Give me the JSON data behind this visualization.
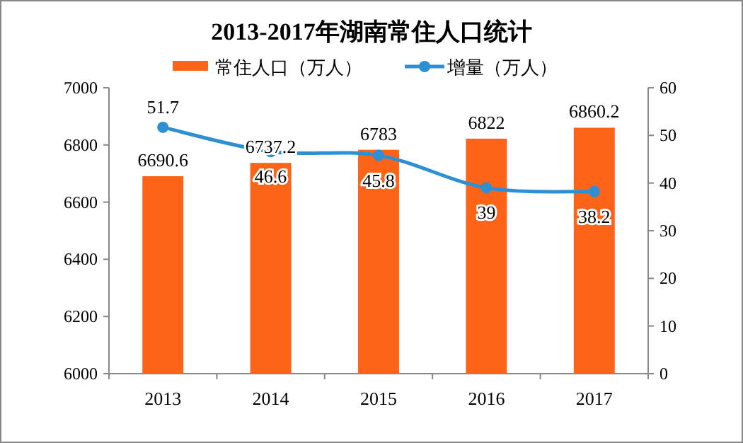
{
  "chart_data": {
    "type": "bar",
    "title": "2013-2017年湖南常住人口统计",
    "categories": [
      "2013",
      "2014",
      "2015",
      "2016",
      "2017"
    ],
    "series": [
      {
        "name": "常住人口（万人）",
        "color": "#fd6418",
        "values": [
          6690.6,
          6737.2,
          6783,
          6822,
          6860.2
        ]
      },
      {
        "name": "增量（万人）",
        "type": "line",
        "axis": "y2",
        "color": "#2f8fd3",
        "marker": "circle",
        "values": [
          51.7,
          46.6,
          45.8,
          39,
          38.2
        ]
      }
    ],
    "ylim": [
      6000,
      7000
    ],
    "yticks": [
      6000,
      6200,
      6400,
      6600,
      6800,
      7000
    ],
    "y2lim": [
      0,
      60
    ],
    "y2ticks": [
      0,
      10,
      20,
      30,
      40,
      50,
      60
    ],
    "data_labels": true,
    "legend": "top",
    "grid": false
  }
}
